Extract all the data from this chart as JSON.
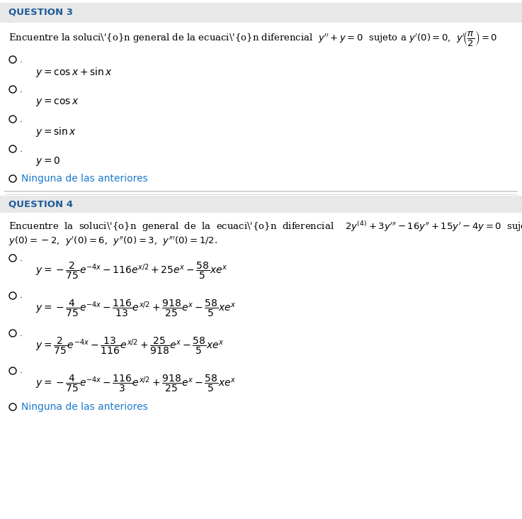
{
  "bg_color": "#ffffff",
  "q3_header": "QUESTION 3",
  "q4_header": "QUESTION 4",
  "header_color": "#1f5c99",
  "ninguna_color": "#1a7acc",
  "text_color": "#000000",
  "font_size_header": 9.5,
  "font_size_body": 9.5,
  "font_size_math": 10
}
